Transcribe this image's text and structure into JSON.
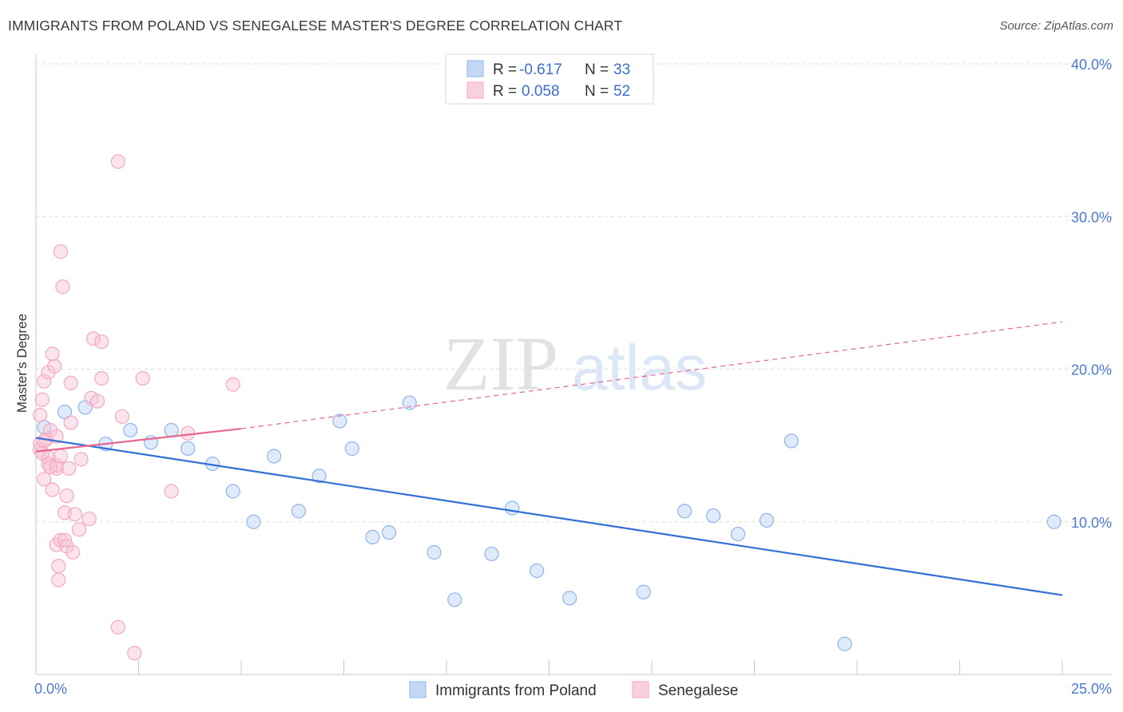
{
  "chart_data": {
    "type": "scatter",
    "title": "IMMIGRANTS FROM POLAND VS SENEGALESE MASTER'S DEGREE CORRELATION CHART",
    "source": "Source: ZipAtlas.com",
    "xlabel": "",
    "ylabel": "Master's Degree",
    "xlim": [
      0,
      25
    ],
    "ylim": [
      0,
      40
    ],
    "x_tick_labels": [
      "0.0%",
      "25.0%"
    ],
    "y_ticks": [
      10,
      20,
      30,
      40
    ],
    "y_tick_labels": [
      "10.0%",
      "20.0%",
      "30.0%",
      "40.0%"
    ],
    "watermark": "ZIPatlas",
    "legend": {
      "rows": [
        {
          "r_label": "R =",
          "r_value": "-0.617",
          "n_label": "N =",
          "n_value": "33"
        },
        {
          "r_label": "R =",
          "r_value": "0.058",
          "n_label": "N =",
          "n_value": "52"
        }
      ]
    },
    "series": [
      {
        "name": "Immigrants from Poland",
        "color": "#8fb4ea",
        "line_color": "#2f6fd6",
        "trend": {
          "x0": 0,
          "y0": 15.5,
          "x1": 25,
          "y1": 5.2,
          "dashed_to": 25
        },
        "points": [
          [
            0.2,
            16.2
          ],
          [
            0.7,
            17.2
          ],
          [
            1.2,
            17.5
          ],
          [
            1.7,
            15.1
          ],
          [
            2.3,
            16.0
          ],
          [
            2.8,
            15.2
          ],
          [
            3.3,
            16.0
          ],
          [
            3.7,
            14.8
          ],
          [
            4.3,
            13.8
          ],
          [
            4.8,
            12.0
          ],
          [
            5.3,
            10.0
          ],
          [
            5.8,
            14.3
          ],
          [
            6.4,
            10.7
          ],
          [
            6.9,
            13.0
          ],
          [
            7.4,
            16.6
          ],
          [
            7.7,
            14.8
          ],
          [
            8.2,
            9.0
          ],
          [
            8.6,
            9.3
          ],
          [
            9.1,
            17.8
          ],
          [
            9.7,
            8.0
          ],
          [
            10.2,
            4.9
          ],
          [
            11.1,
            7.9
          ],
          [
            11.6,
            10.9
          ],
          [
            12.2,
            6.8
          ],
          [
            13.0,
            5.0
          ],
          [
            14.8,
            5.4
          ],
          [
            15.8,
            10.7
          ],
          [
            16.5,
            10.4
          ],
          [
            17.1,
            9.2
          ],
          [
            17.8,
            10.1
          ],
          [
            18.4,
            15.3
          ],
          [
            19.7,
            2.0
          ],
          [
            24.8,
            10.0
          ]
        ]
      },
      {
        "name": "Senegalese",
        "color": "#f4a9c0",
        "line_color": "#e7658f",
        "trend": {
          "x0": 0,
          "y0": 14.6,
          "x1": 5.0,
          "y1": 16.1,
          "dashed_to": 25,
          "y_end": 23.1
        },
        "points": [
          [
            0.1,
            15.1
          ],
          [
            0.1,
            14.7
          ],
          [
            0.1,
            17.0
          ],
          [
            0.15,
            18.0
          ],
          [
            0.2,
            12.8
          ],
          [
            0.2,
            19.2
          ],
          [
            0.25,
            15.4
          ],
          [
            0.3,
            14.2
          ],
          [
            0.3,
            13.8
          ],
          [
            0.3,
            19.8
          ],
          [
            0.35,
            16.0
          ],
          [
            0.4,
            12.1
          ],
          [
            0.45,
            20.2
          ],
          [
            0.4,
            21.0
          ],
          [
            0.5,
            8.5
          ],
          [
            0.5,
            13.5
          ],
          [
            0.5,
            13.7
          ],
          [
            0.55,
            7.1
          ],
          [
            0.55,
            6.2
          ],
          [
            0.6,
            27.7
          ],
          [
            0.6,
            8.8
          ],
          [
            0.65,
            25.4
          ],
          [
            0.7,
            10.6
          ],
          [
            0.7,
            8.8
          ],
          [
            0.75,
            8.4
          ],
          [
            0.75,
            11.7
          ],
          [
            0.8,
            13.5
          ],
          [
            0.85,
            19.1
          ],
          [
            0.85,
            16.5
          ],
          [
            0.9,
            8.0
          ],
          [
            0.95,
            10.5
          ],
          [
            1.05,
            9.5
          ],
          [
            1.1,
            14.1
          ],
          [
            1.3,
            10.2
          ],
          [
            1.35,
            18.1
          ],
          [
            1.4,
            22.0
          ],
          [
            1.5,
            17.9
          ],
          [
            1.6,
            21.8
          ],
          [
            1.6,
            19.4
          ],
          [
            2.0,
            33.6
          ],
          [
            2.0,
            3.1
          ],
          [
            2.1,
            16.9
          ],
          [
            2.4,
            1.4
          ],
          [
            2.6,
            19.4
          ],
          [
            3.3,
            12.0
          ],
          [
            3.7,
            15.8
          ],
          [
            4.8,
            19.0
          ],
          [
            0.35,
            13.6
          ],
          [
            0.6,
            14.3
          ],
          [
            0.15,
            14.5
          ],
          [
            0.5,
            15.6
          ],
          [
            0.2,
            15.3
          ]
        ]
      }
    ]
  }
}
